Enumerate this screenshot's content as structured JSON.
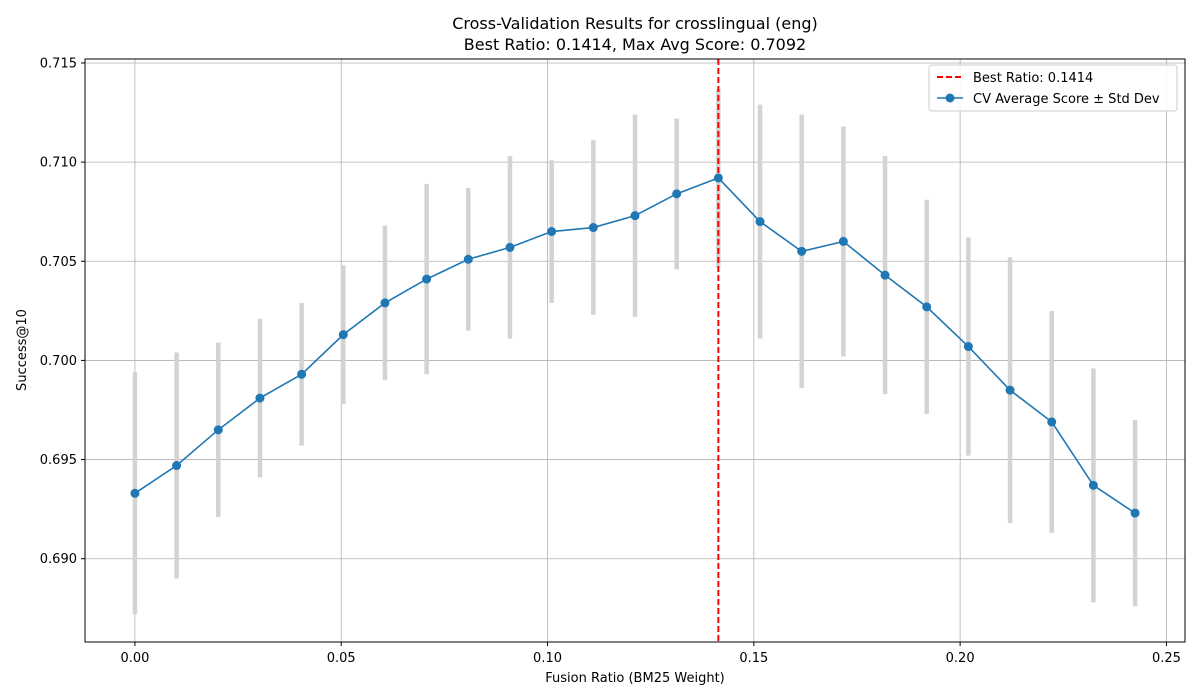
{
  "chart_data": {
    "type": "line",
    "title": "Cross-Validation Results for crosslingual (eng)",
    "subtitle": "Best Ratio: 0.1414, Max Avg Score: 0.7092",
    "xlabel": "Fusion Ratio (BM25 Weight)",
    "ylabel": "Success@10",
    "xlim": [
      -0.0121,
      0.2545
    ],
    "ylim": [
      0.6858,
      0.7152
    ],
    "xticks": [
      "0.00",
      "0.05",
      "0.10",
      "0.15",
      "0.20",
      "0.25"
    ],
    "xtick_values": [
      0,
      0.05,
      0.1,
      0.15,
      0.2,
      0.25
    ],
    "yticks": [
      "0.690",
      "0.695",
      "0.700",
      "0.705",
      "0.710",
      "0.715"
    ],
    "ytick_values": [
      0.69,
      0.695,
      0.7,
      0.705,
      0.71,
      0.715
    ],
    "grid": true,
    "legend_position": "top-right",
    "best_ratio": {
      "value": 0.1414,
      "label": "Best Ratio: 0.1414",
      "color": "#ff0000"
    },
    "series": [
      {
        "name": "CV Average Score ± Std Dev",
        "color": "#1f77b4",
        "errorbar_color": "#d3d3d3",
        "x": [
          0.0,
          0.0101,
          0.0202,
          0.0303,
          0.0404,
          0.0505,
          0.0606,
          0.0707,
          0.0808,
          0.0909,
          0.101,
          0.1111,
          0.1212,
          0.1313,
          0.1414,
          0.1515,
          0.1616,
          0.1717,
          0.1818,
          0.1919,
          0.202,
          0.2121,
          0.2222,
          0.2323,
          0.2424
        ],
        "y": [
          0.6933,
          0.6947,
          0.6965,
          0.6981,
          0.6993,
          0.7013,
          0.7029,
          0.7041,
          0.7051,
          0.7057,
          0.7065,
          0.7067,
          0.7073,
          0.7084,
          0.7092,
          0.707,
          0.7055,
          0.706,
          0.7043,
          0.7027,
          0.7007,
          0.6985,
          0.6969,
          0.6937,
          0.6923
        ],
        "err": [
          0.0061,
          0.0057,
          0.0044,
          0.004,
          0.0036,
          0.0035,
          0.0039,
          0.0048,
          0.0036,
          0.0046,
          0.0036,
          0.0044,
          0.0051,
          0.0038,
          0.0045,
          0.0059,
          0.0069,
          0.0058,
          0.006,
          0.0054,
          0.0055,
          0.0067,
          0.0056,
          0.0059,
          0.0047
        ]
      }
    ]
  }
}
